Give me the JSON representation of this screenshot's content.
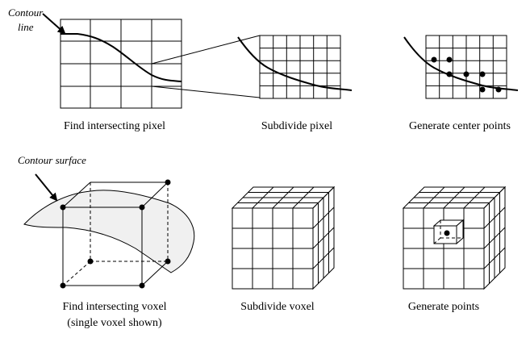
{
  "annotations": {
    "contour_line_1": "Contour",
    "contour_line_2": "line",
    "contour_surface": "Contour surface"
  },
  "captions": {
    "find_pixel": "Find intersecting pixel",
    "subdivide_pixel": "Subdivide pixel",
    "center_points": "Generate center points",
    "find_voxel_1": "Find intersecting voxel",
    "find_voxel_2": "(single voxel shown)",
    "subdivide_voxel": "Subdivide voxel",
    "generate_points": "Generate points"
  }
}
